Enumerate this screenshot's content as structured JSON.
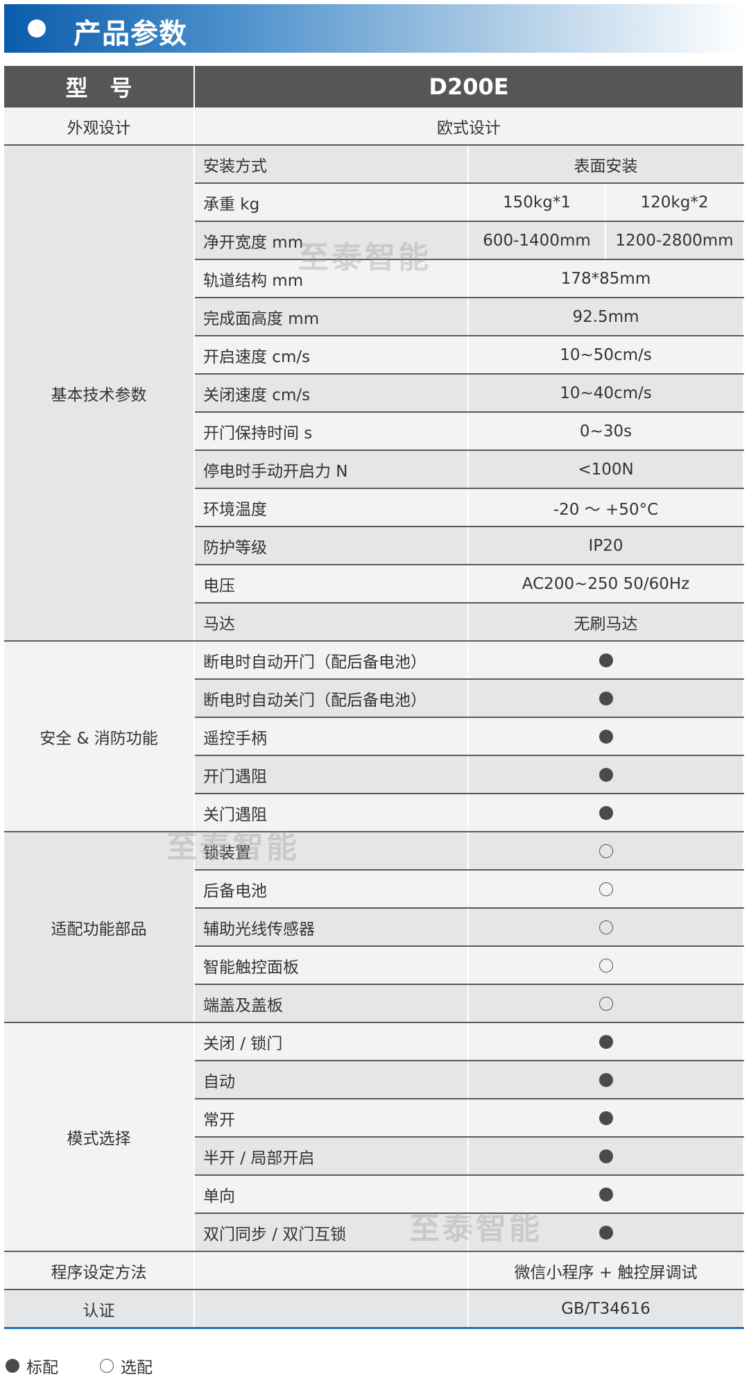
{
  "banner": {
    "title": "产品参数"
  },
  "header": {
    "model_label": "型　号",
    "model_value": "D200E"
  },
  "appearance": {
    "label": "外观设计",
    "value": "欧式设计"
  },
  "groups": [
    {
      "label": "基本技术参数",
      "rows": [
        {
          "name": "安装方式",
          "value": "表面安装"
        },
        {
          "name": "承重 kg",
          "values": [
            "150kg*1",
            "120kg*2"
          ]
        },
        {
          "name": "净开宽度 mm",
          "values": [
            "600-1400mm",
            "1200-2800mm"
          ]
        },
        {
          "name": "轨道结构 mm",
          "value": "178*85mm"
        },
        {
          "name": "完成面高度 mm",
          "value": "92.5mm"
        },
        {
          "name": "开启速度 cm/s",
          "value": "10~50cm/s"
        },
        {
          "name": "关闭速度 cm/s",
          "value": "10~40cm/s"
        },
        {
          "name": "开门保持时间 s",
          "value": "0~30s"
        },
        {
          "name": "停电时手动开启力 N",
          "value": "<100N"
        },
        {
          "name": "环境温度",
          "value": "-20 ～ +50°C"
        },
        {
          "name": "防护等级",
          "value": "IP20"
        },
        {
          "name": "电压",
          "value": "AC200~250  50/60Hz"
        },
        {
          "name": "马达",
          "value": "无刷马达"
        }
      ]
    },
    {
      "label": "安全 & 消防功能",
      "rows": [
        {
          "name": "断电时自动开门（配后备电池）",
          "mark": "standard"
        },
        {
          "name": "断电时自动关门（配后备电池）",
          "mark": "standard"
        },
        {
          "name": "遥控手柄",
          "mark": "standard"
        },
        {
          "name": "开门遇阻",
          "mark": "standard"
        },
        {
          "name": "关门遇阻",
          "mark": "standard"
        }
      ]
    },
    {
      "label": "适配功能部品",
      "rows": [
        {
          "name": "锁装置",
          "mark": "optional"
        },
        {
          "name": "后备电池",
          "mark": "optional"
        },
        {
          "name": "辅助光线传感器",
          "mark": "optional"
        },
        {
          "name": "智能触控面板",
          "mark": "optional"
        },
        {
          "name": "端盖及盖板",
          "mark": "optional"
        }
      ]
    },
    {
      "label": "模式选择",
      "rows": [
        {
          "name": "关闭 / 锁门",
          "mark": "standard"
        },
        {
          "name": "自动",
          "mark": "standard"
        },
        {
          "name": "常开",
          "mark": "standard"
        },
        {
          "name": "半开 / 局部开启",
          "mark": "standard"
        },
        {
          "name": "单向",
          "mark": "standard"
        },
        {
          "name": "双门同步 / 双门互锁",
          "mark": "standard"
        }
      ]
    }
  ],
  "programming": {
    "label": "程序设定方法",
    "value": "微信小程序 + 触控屏调试"
  },
  "certification": {
    "label": "认证",
    "value": "GB/T34616"
  },
  "watermark": "至泰智能",
  "legend": {
    "standard": "标配",
    "optional": "选配"
  },
  "colors": {
    "header_bg": "#565658",
    "accent": "#0a5cab"
  }
}
